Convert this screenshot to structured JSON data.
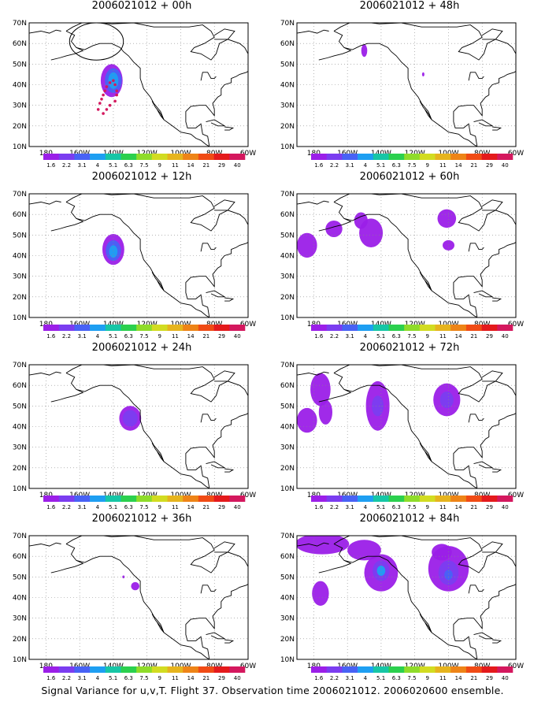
{
  "colors": {
    "scale": [
      "#9b1fe8",
      "#7b3df0",
      "#4862f5",
      "#1e9ff2",
      "#17c6a6",
      "#2bd04e",
      "#8fdc2a",
      "#d2dc21",
      "#e6b41e",
      "#ee8417",
      "#f04b15",
      "#e41a1c",
      "#d4185e"
    ],
    "coast": "#000000",
    "frame": "#000000",
    "grid": "#888888"
  },
  "chart_data": [
    {
      "type": "heatmap",
      "title": "2006021012 + 00h",
      "lon_ticks": [
        "180",
        "160W",
        "140W",
        "120W",
        "100W",
        "80W",
        "60W"
      ],
      "lat_ticks": [
        "10N",
        "20N",
        "30N",
        "40N",
        "50N",
        "60N",
        "70N"
      ],
      "legend_levels": [
        "1.6",
        "2.2",
        "3.1",
        "4",
        "5.1",
        "6.3",
        "7.5",
        "9",
        "11",
        "14",
        "21",
        "29",
        "40"
      ],
      "blobs": [
        {
          "lon": -141,
          "lat": 42,
          "rlon": 6.5,
          "rlat": 8,
          "level": 0
        },
        {
          "lon": -140,
          "lat": 42,
          "rlon": 5,
          "rlat": 6,
          "level": 2
        },
        {
          "lon": -140,
          "lat": 42,
          "rlon": 3,
          "rlat": 4,
          "level": 3
        }
      ],
      "track": [
        {
          "lon": -149,
          "lat": 28
        },
        {
          "lon": -148,
          "lat": 31
        },
        {
          "lon": -147,
          "lat": 33
        },
        {
          "lon": -146,
          "lat": 35
        },
        {
          "lon": -145,
          "lat": 37
        },
        {
          "lon": -144,
          "lat": 39
        },
        {
          "lon": -142,
          "lat": 41
        },
        {
          "lon": -140,
          "lat": 42
        },
        {
          "lon": -139,
          "lat": 40
        },
        {
          "lon": -138,
          "lat": 37
        },
        {
          "lon": -138,
          "lat": 35
        },
        {
          "lon": -139,
          "lat": 32
        },
        {
          "lon": -142,
          "lat": 30
        },
        {
          "lon": -144,
          "lat": 28
        },
        {
          "lon": -146,
          "lat": 26
        }
      ],
      "ring": {
        "lon": -150,
        "lat": 61,
        "rlon": 16,
        "rlat": 9
      }
    },
    {
      "type": "heatmap",
      "title": "2006021012 + 48h",
      "lon_ticks": [
        "180",
        "160W",
        "140W",
        "120W",
        "100W",
        "80W",
        "60W"
      ],
      "lat_ticks": [
        "10N",
        "20N",
        "30N",
        "40N",
        "50N",
        "60N",
        "70N"
      ],
      "legend_levels": [
        "1.6",
        "2.2",
        "3.1",
        "4",
        "5.1",
        "6.3",
        "7.5",
        "9",
        "11",
        "14",
        "21",
        "29",
        "40"
      ],
      "blobs": [
        {
          "lon": -150,
          "lat": 56.5,
          "rlon": 1.8,
          "rlat": 3,
          "level": 0
        },
        {
          "lon": -115,
          "lat": 45,
          "rlon": 0.7,
          "rlat": 1,
          "level": 0
        }
      ]
    },
    {
      "type": "heatmap",
      "title": "2006021012 + 12h",
      "lon_ticks": [
        "180",
        "160W",
        "140W",
        "120W",
        "100W",
        "80W",
        "60W"
      ],
      "lat_ticks": [
        "10N",
        "20N",
        "30N",
        "40N",
        "50N",
        "60N",
        "70N"
      ],
      "legend_levels": [
        "1.6",
        "2.2",
        "3.1",
        "4",
        "5.1",
        "6.3",
        "7.5",
        "9",
        "11",
        "14",
        "21",
        "29",
        "40"
      ],
      "blobs": [
        {
          "lon": -140,
          "lat": 43,
          "rlon": 6.5,
          "rlat": 7.5,
          "level": 0
        },
        {
          "lon": -140,
          "lat": 42.5,
          "rlon": 4.5,
          "rlat": 5,
          "level": 2
        },
        {
          "lon": -140,
          "lat": 42,
          "rlon": 2.5,
          "rlat": 3,
          "level": 3
        }
      ]
    },
    {
      "type": "heatmap",
      "title": "2006021012 + 60h",
      "lon_ticks": [
        "180",
        "160W",
        "140W",
        "120W",
        "100W",
        "80W",
        "60W"
      ],
      "lat_ticks": [
        "10N",
        "20N",
        "30N",
        "40N",
        "50N",
        "60N",
        "70N"
      ],
      "legend_levels": [
        "1.6",
        "2.2",
        "3.1",
        "4",
        "5.1",
        "6.3",
        "7.5",
        "9",
        "11",
        "14",
        "21",
        "29",
        "40"
      ],
      "blobs": [
        {
          "lon": -184,
          "lat": 45,
          "rlon": 6,
          "rlat": 6,
          "level": 0
        },
        {
          "lon": -168,
          "lat": 53,
          "rlon": 5,
          "rlat": 4,
          "level": 0
        },
        {
          "lon": -146,
          "lat": 51,
          "rlon": 7,
          "rlat": 7,
          "level": 0
        },
        {
          "lon": -152,
          "lat": 57,
          "rlon": 4,
          "rlat": 4,
          "level": 0
        },
        {
          "lon": -101,
          "lat": 58,
          "rlon": 5.5,
          "rlat": 4.5,
          "level": 0
        },
        {
          "lon": -100,
          "lat": 45,
          "rlon": 3.5,
          "rlat": 2.5,
          "level": 0
        }
      ]
    },
    {
      "type": "heatmap",
      "title": "2006021012 + 24h",
      "lon_ticks": [
        "180",
        "160W",
        "140W",
        "120W",
        "100W",
        "80W",
        "60W"
      ],
      "lat_ticks": [
        "10N",
        "20N",
        "30N",
        "40N",
        "50N",
        "60N",
        "70N"
      ],
      "legend_levels": [
        "1.6",
        "2.2",
        "3.1",
        "4",
        "5.1",
        "6.3",
        "7.5",
        "9",
        "11",
        "14",
        "21",
        "29",
        "40"
      ],
      "blobs": [
        {
          "lon": -130,
          "lat": 44,
          "rlon": 6.5,
          "rlat": 6,
          "level": 0
        },
        {
          "lon": -130,
          "lat": 44,
          "rlon": 4.5,
          "rlat": 4,
          "level": 1
        }
      ]
    },
    {
      "type": "heatmap",
      "title": "2006021012 + 72h",
      "lon_ticks": [
        "180",
        "160W",
        "140W",
        "120W",
        "100W",
        "80W",
        "60W"
      ],
      "lat_ticks": [
        "10N",
        "20N",
        "30N",
        "40N",
        "50N",
        "60N",
        "70N"
      ],
      "legend_levels": [
        "1.6",
        "2.2",
        "3.1",
        "4",
        "5.1",
        "6.3",
        "7.5",
        "9",
        "11",
        "14",
        "21",
        "29",
        "40"
      ],
      "blobs": [
        {
          "lon": -176,
          "lat": 58,
          "rlon": 6,
          "rlat": 8,
          "level": 0
        },
        {
          "lon": -184,
          "lat": 43,
          "rlon": 6,
          "rlat": 6,
          "level": 0
        },
        {
          "lon": -173,
          "lat": 47,
          "rlon": 4,
          "rlat": 6,
          "level": 0
        },
        {
          "lon": -142,
          "lat": 50,
          "rlon": 7,
          "rlat": 12,
          "level": 0
        },
        {
          "lon": -142,
          "lat": 50,
          "rlon": 3.5,
          "rlat": 5,
          "level": 1
        },
        {
          "lon": -101,
          "lat": 53,
          "rlon": 8,
          "rlat": 8,
          "level": 0
        },
        {
          "lon": -101,
          "lat": 53,
          "rlon": 4,
          "rlat": 4,
          "level": 1
        }
      ]
    },
    {
      "type": "heatmap",
      "title": "2006021012 + 36h",
      "lon_ticks": [
        "180",
        "160W",
        "140W",
        "120W",
        "100W",
        "80W",
        "60W"
      ],
      "lat_ticks": [
        "10N",
        "20N",
        "30N",
        "40N",
        "50N",
        "60N",
        "70N"
      ],
      "legend_levels": [
        "1.6",
        "2.2",
        "3.1",
        "4",
        "5.1",
        "6.3",
        "7.5",
        "9",
        "11",
        "14",
        "21",
        "29",
        "40"
      ],
      "blobs": [
        {
          "lon": -127,
          "lat": 45.5,
          "rlon": 2.5,
          "rlat": 2,
          "level": 0
        },
        {
          "lon": -134,
          "lat": 50,
          "rlon": 0.7,
          "rlat": 0.7,
          "level": 0
        }
      ]
    },
    {
      "type": "heatmap",
      "title": "2006021012 + 84h",
      "lon_ticks": [
        "180",
        "160W",
        "140W",
        "120W",
        "100W",
        "80W",
        "60W"
      ],
      "lat_ticks": [
        "10N",
        "20N",
        "30N",
        "40N",
        "50N",
        "60N",
        "70N"
      ],
      "legend_levels": [
        "1.6",
        "2.2",
        "3.1",
        "4",
        "5.1",
        "6.3",
        "7.5",
        "9",
        "11",
        "14",
        "21",
        "29",
        "40"
      ],
      "blobs": [
        {
          "lon": -175,
          "lat": 66,
          "rlon": 16,
          "rlat": 5,
          "level": 0
        },
        {
          "lon": -150,
          "lat": 63,
          "rlon": 10,
          "rlat": 5,
          "level": 0
        },
        {
          "lon": -176,
          "lat": 42,
          "rlon": 5,
          "rlat": 6,
          "level": 0
        },
        {
          "lon": -140,
          "lat": 52,
          "rlon": 10,
          "rlat": 9,
          "level": 0
        },
        {
          "lon": -140,
          "lat": 53,
          "rlon": 5,
          "rlat": 5,
          "level": 1
        },
        {
          "lon": -140,
          "lat": 53,
          "rlon": 2.5,
          "rlat": 2.5,
          "level": 3
        },
        {
          "lon": -100,
          "lat": 54,
          "rlon": 12,
          "rlat": 11,
          "level": 0
        },
        {
          "lon": -100,
          "lat": 52,
          "rlon": 6,
          "rlat": 6,
          "level": 1
        },
        {
          "lon": -100,
          "lat": 51,
          "rlon": 2.5,
          "rlat": 2.5,
          "level": 2
        },
        {
          "lon": -104,
          "lat": 62,
          "rlon": 6,
          "rlat": 4,
          "level": 0
        }
      ]
    }
  ],
  "caption": "Signal Variance for u,v,T. Flight 37. Observation time 2006021012. 2006020600 ensemble."
}
